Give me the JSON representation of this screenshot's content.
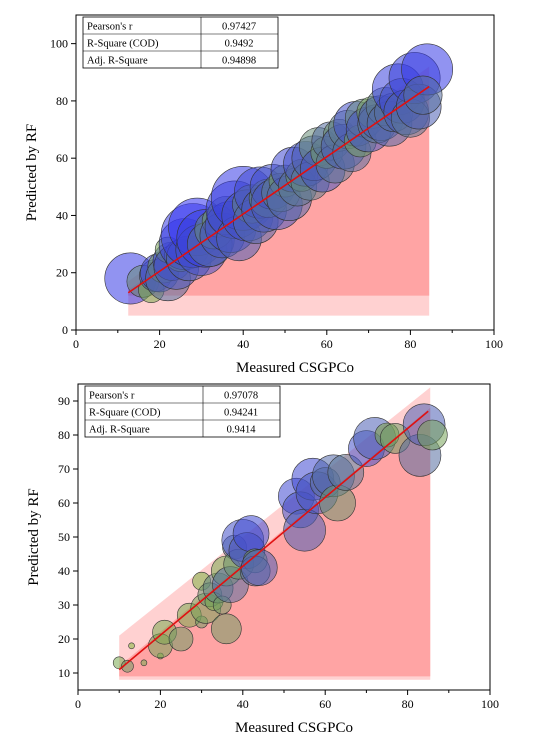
{
  "chart_data": [
    {
      "type": "scatter",
      "xlabel": "Measured CSGPCo",
      "ylabel": "Predicted by RF",
      "xlim": [
        0,
        100
      ],
      "ylim": [
        0,
        110
      ],
      "xticks": [
        "0",
        "20",
        "40",
        "60",
        "80",
        "100"
      ],
      "yticks": [
        "0",
        "20",
        "40",
        "60",
        "80",
        "100"
      ],
      "stats": [
        {
          "label": "Pearson's r",
          "value": "0.97427"
        },
        {
          "label": "R-Square (COD)",
          "value": "0.9492"
        },
        {
          "label": "Adj. R-Square",
          "value": "0.94898"
        }
      ],
      "fit_line": {
        "x": [
          12.5,
          84.5
        ],
        "y": [
          13,
          85
        ]
      },
      "confidence_band": {
        "x": [
          12.5,
          84.5
        ],
        "lower": [
          5,
          5
        ],
        "upper": [
          17,
          92
        ]
      },
      "prediction_band": {
        "x": [
          12.5,
          84.5
        ],
        "lower": [
          12,
          12
        ],
        "upper": [
          14,
          86
        ]
      },
      "points": [
        {
          "x": 13,
          "y": 18,
          "s": 8,
          "c": 0.95
        },
        {
          "x": 16,
          "y": 17,
          "s": 5,
          "c": 0.4
        },
        {
          "x": 18,
          "y": 14,
          "s": 4,
          "c": 0.2
        },
        {
          "x": 19,
          "y": 19,
          "s": 5,
          "c": 0.7
        },
        {
          "x": 20,
          "y": 20,
          "s": 6,
          "c": 0.85
        },
        {
          "x": 21,
          "y": 22,
          "s": 5,
          "c": 0.3
        },
        {
          "x": 22,
          "y": 18,
          "s": 7,
          "c": 0.6
        },
        {
          "x": 23,
          "y": 24,
          "s": 6,
          "c": 0.9
        },
        {
          "x": 22,
          "y": 28,
          "s": 4,
          "c": 0.25
        },
        {
          "x": 24,
          "y": 22,
          "s": 7,
          "c": 0.75
        },
        {
          "x": 25,
          "y": 26,
          "s": 5,
          "c": 0.35
        },
        {
          "x": 26,
          "y": 30,
          "s": 8,
          "c": 0.9
        },
        {
          "x": 27,
          "y": 25,
          "s": 7,
          "c": 0.7
        },
        {
          "x": 28,
          "y": 33,
          "s": 10,
          "c": 0.95
        },
        {
          "x": 29,
          "y": 36,
          "s": 9,
          "c": 1.0
        },
        {
          "x": 30,
          "y": 28,
          "s": 8,
          "c": 0.8
        },
        {
          "x": 31,
          "y": 32,
          "s": 9,
          "c": 0.9
        },
        {
          "x": 32,
          "y": 30,
          "s": 7,
          "c": 0.6
        },
        {
          "x": 33,
          "y": 35,
          "s": 6,
          "c": 0.45
        },
        {
          "x": 34,
          "y": 38,
          "s": 5,
          "c": 0.3
        },
        {
          "x": 35,
          "y": 33,
          "s": 7,
          "c": 0.75
        },
        {
          "x": 36,
          "y": 40,
          "s": 6,
          "c": 0.35
        },
        {
          "x": 37,
          "y": 36,
          "s": 8,
          "c": 0.85
        },
        {
          "x": 38,
          "y": 42,
          "s": 9,
          "c": 0.9
        },
        {
          "x": 39,
          "y": 32,
          "s": 7,
          "c": 0.7
        },
        {
          "x": 40,
          "y": 46,
          "s": 10,
          "c": 0.95
        },
        {
          "x": 41,
          "y": 40,
          "s": 8,
          "c": 0.8
        },
        {
          "x": 42,
          "y": 44,
          "s": 6,
          "c": 0.45
        },
        {
          "x": 43,
          "y": 38,
          "s": 7,
          "c": 0.65
        },
        {
          "x": 44,
          "y": 48,
          "s": 8,
          "c": 0.85
        },
        {
          "x": 45,
          "y": 42,
          "s": 7,
          "c": 0.7
        },
        {
          "x": 46,
          "y": 46,
          "s": 6,
          "c": 0.4
        },
        {
          "x": 47,
          "y": 50,
          "s": 7,
          "c": 0.8
        },
        {
          "x": 48,
          "y": 44,
          "s": 8,
          "c": 0.75
        },
        {
          "x": 49,
          "y": 48,
          "s": 6,
          "c": 0.5
        },
        {
          "x": 50,
          "y": 52,
          "s": 5,
          "c": 0.3
        },
        {
          "x": 51,
          "y": 46,
          "s": 7,
          "c": 0.65
        },
        {
          "x": 52,
          "y": 56,
          "s": 7,
          "c": 0.85
        },
        {
          "x": 53,
          "y": 50,
          "s": 6,
          "c": 0.55
        },
        {
          "x": 54,
          "y": 54,
          "s": 5,
          "c": 0.35
        },
        {
          "x": 55,
          "y": 58,
          "s": 7,
          "c": 0.8
        },
        {
          "x": 56,
          "y": 52,
          "s": 6,
          "c": 0.5
        },
        {
          "x": 57,
          "y": 60,
          "s": 7,
          "c": 0.7
        },
        {
          "x": 58,
          "y": 64,
          "s": 6,
          "c": 0.4
        },
        {
          "x": 59,
          "y": 56,
          "s": 7,
          "c": 0.75
        },
        {
          "x": 60,
          "y": 62,
          "s": 5,
          "c": 0.3
        },
        {
          "x": 61,
          "y": 66,
          "s": 6,
          "c": 0.6
        },
        {
          "x": 62,
          "y": 58,
          "s": 6,
          "c": 0.55
        },
        {
          "x": 63,
          "y": 68,
          "s": 5,
          "c": 0.35
        },
        {
          "x": 64,
          "y": 64,
          "s": 7,
          "c": 0.7
        },
        {
          "x": 65,
          "y": 70,
          "s": 6,
          "c": 0.5
        },
        {
          "x": 66,
          "y": 62,
          "s": 6,
          "c": 0.6
        },
        {
          "x": 67,
          "y": 72,
          "s": 7,
          "c": 0.8
        },
        {
          "x": 68,
          "y": 66,
          "s": 5,
          "c": 0.3
        },
        {
          "x": 69,
          "y": 74,
          "s": 6,
          "c": 0.45
        },
        {
          "x": 70,
          "y": 70,
          "s": 7,
          "c": 0.75
        },
        {
          "x": 71,
          "y": 76,
          "s": 5,
          "c": 0.25
        },
        {
          "x": 72,
          "y": 72,
          "s": 6,
          "c": 0.55
        },
        {
          "x": 73,
          "y": 74,
          "s": 7,
          "c": 0.7
        },
        {
          "x": 74,
          "y": 78,
          "s": 6,
          "c": 0.5
        },
        {
          "x": 75,
          "y": 72,
          "s": 7,
          "c": 0.65
        },
        {
          "x": 76,
          "y": 76,
          "s": 6,
          "c": 0.6
        },
        {
          "x": 77,
          "y": 84,
          "s": 8,
          "c": 0.9
        },
        {
          "x": 78,
          "y": 80,
          "s": 7,
          "c": 0.8
        },
        {
          "x": 79,
          "y": 76,
          "s": 7,
          "c": 0.7
        },
        {
          "x": 80,
          "y": 74,
          "s": 6,
          "c": 0.55
        },
        {
          "x": 81,
          "y": 88,
          "s": 8,
          "c": 0.9
        },
        {
          "x": 82,
          "y": 78,
          "s": 7,
          "c": 0.7
        },
        {
          "x": 84,
          "y": 91,
          "s": 8,
          "c": 0.95
        },
        {
          "x": 83,
          "y": 82,
          "s": 6,
          "c": 0.6
        }
      ]
    },
    {
      "type": "scatter",
      "xlabel": "Measured CSGPCo",
      "ylabel": "Predicted by RF",
      "xlim": [
        0,
        100
      ],
      "ylim": [
        5,
        95
      ],
      "xticks": [
        "0",
        "20",
        "40",
        "60",
        "80",
        "100"
      ],
      "yticks": [
        "10",
        "20",
        "30",
        "40",
        "50",
        "60",
        "70",
        "80",
        "90"
      ],
      "stats": [
        {
          "label": "Pearson's r",
          "value": "0.97078"
        },
        {
          "label": "R-Square (COD)",
          "value": "0.94241"
        },
        {
          "label": "Adj. R-Square",
          "value": "0.9414"
        }
      ],
      "fit_line": {
        "x": [
          10,
          85
        ],
        "y": [
          11,
          87
        ]
      },
      "confidence_band": {
        "x": [
          10,
          85.5
        ],
        "lower": [
          8,
          8
        ],
        "upper": [
          21,
          94
        ]
      },
      "prediction_band": {
        "x": [
          10,
          85.5
        ],
        "lower": [
          9,
          9
        ],
        "upper": [
          12,
          88
        ]
      },
      "points": [
        {
          "x": 10,
          "y": 13,
          "s": 2,
          "c": 0.2
        },
        {
          "x": 12,
          "y": 12,
          "s": 2,
          "c": 0.3
        },
        {
          "x": 13,
          "y": 18,
          "s": 1,
          "c": 0.1
        },
        {
          "x": 16,
          "y": 13,
          "s": 1,
          "c": 0.2
        },
        {
          "x": 20,
          "y": 15,
          "s": 1,
          "c": 0.1
        },
        {
          "x": 20,
          "y": 18,
          "s": 4,
          "c": 0.25
        },
        {
          "x": 21,
          "y": 22,
          "s": 4,
          "c": 0.2
        },
        {
          "x": 25,
          "y": 20,
          "s": 4,
          "c": 0.3
        },
        {
          "x": 27,
          "y": 27,
          "s": 4,
          "c": 0.2
        },
        {
          "x": 30,
          "y": 25,
          "s": 2,
          "c": 0.3
        },
        {
          "x": 30,
          "y": 37,
          "s": 3,
          "c": 0.15
        },
        {
          "x": 31,
          "y": 29,
          "s": 5,
          "c": 0.25
        },
        {
          "x": 32,
          "y": 33,
          "s": 4,
          "c": 0.35
        },
        {
          "x": 33,
          "y": 31,
          "s": 3,
          "c": 0.2
        },
        {
          "x": 34,
          "y": 35,
          "s": 5,
          "c": 0.45
        },
        {
          "x": 35,
          "y": 30,
          "s": 3,
          "c": 0.3
        },
        {
          "x": 36,
          "y": 23,
          "s": 5,
          "c": 0.3
        },
        {
          "x": 36,
          "y": 40,
          "s": 5,
          "c": 0.2
        },
        {
          "x": 37,
          "y": 36,
          "s": 6,
          "c": 0.6
        },
        {
          "x": 38,
          "y": 47,
          "s": 4,
          "c": 0.55
        },
        {
          "x": 39,
          "y": 42,
          "s": 5,
          "c": 0.35
        },
        {
          "x": 40,
          "y": 49,
          "s": 7,
          "c": 0.8
        },
        {
          "x": 41,
          "y": 46,
          "s": 6,
          "c": 0.75
        },
        {
          "x": 42,
          "y": 51,
          "s": 6,
          "c": 0.85
        },
        {
          "x": 43,
          "y": 43,
          "s": 4,
          "c": 0.3
        },
        {
          "x": 43,
          "y": 40,
          "s": 5,
          "c": 0.6
        },
        {
          "x": 44,
          "y": 41,
          "s": 6,
          "c": 0.7
        },
        {
          "x": 53,
          "y": 62,
          "s": 6,
          "c": 0.85
        },
        {
          "x": 54,
          "y": 58,
          "s": 6,
          "c": 0.8
        },
        {
          "x": 55,
          "y": 52,
          "s": 7,
          "c": 0.7
        },
        {
          "x": 57,
          "y": 67,
          "s": 7,
          "c": 0.85
        },
        {
          "x": 58,
          "y": 63,
          "s": 7,
          "c": 0.75
        },
        {
          "x": 60,
          "y": 66,
          "s": 5,
          "c": 0.6
        },
        {
          "x": 62,
          "y": 68,
          "s": 7,
          "c": 0.65
        },
        {
          "x": 63,
          "y": 60,
          "s": 6,
          "c": 0.35
        },
        {
          "x": 65,
          "y": 69,
          "s": 6,
          "c": 0.55
        },
        {
          "x": 70,
          "y": 76,
          "s": 6,
          "c": 0.8
        },
        {
          "x": 72,
          "y": 79,
          "s": 7,
          "c": 0.7
        },
        {
          "x": 75,
          "y": 80,
          "s": 4,
          "c": 0.2
        },
        {
          "x": 77,
          "y": 79,
          "s": 5,
          "c": 0.3
        },
        {
          "x": 83,
          "y": 74,
          "s": 7,
          "c": 0.6
        },
        {
          "x": 84,
          "y": 83,
          "s": 7,
          "c": 0.7
        },
        {
          "x": 86,
          "y": 80,
          "s": 5,
          "c": 0.25
        }
      ]
    }
  ]
}
